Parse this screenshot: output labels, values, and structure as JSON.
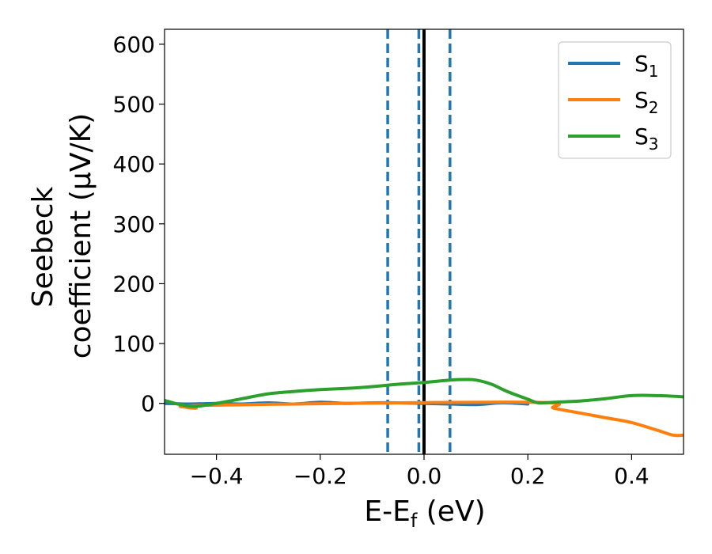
{
  "chart_data": {
    "type": "line",
    "xlabel": {
      "main": "E-E",
      "sub": "f",
      "unit": " (eV)"
    },
    "ylabel": {
      "line1": "Seebeck",
      "line2": "coefficient  (μV/K)"
    },
    "xlim": [
      -0.5,
      0.5
    ],
    "ylim": [
      -85,
      625
    ],
    "xticks": [
      -0.4,
      -0.2,
      0.0,
      0.2,
      0.4
    ],
    "xtick_labels": [
      "−0.4",
      "−0.2",
      "0.0",
      "0.2",
      "0.4"
    ],
    "yticks": [
      0,
      100,
      200,
      300,
      400,
      500,
      600
    ],
    "ytick_labels": [
      "0",
      "100",
      "200",
      "300",
      "400",
      "500",
      "600"
    ],
    "grid": false,
    "legend_position": "top-right",
    "vlines": [
      {
        "x": -0.07,
        "style": "dashed",
        "color": "#1f77b4"
      },
      {
        "x": -0.01,
        "style": "dashed",
        "color": "#1f77b4"
      },
      {
        "x": 0.05,
        "style": "dashed",
        "color": "#1f77b4"
      },
      {
        "x": 0.0,
        "style": "solid",
        "color": "#000000"
      }
    ],
    "series": [
      {
        "name": "S",
        "sub": "1",
        "color": "#1f77b4",
        "x": [
          -0.5,
          -0.45,
          -0.4,
          -0.35,
          -0.3,
          -0.25,
          -0.2,
          -0.15,
          -0.1,
          -0.05,
          0.0,
          0.05,
          0.1,
          0.15,
          0.2
        ],
        "y": [
          0,
          -1,
          0,
          -1,
          1,
          -1,
          2,
          0,
          1,
          1,
          0,
          -1,
          -2,
          1,
          -1
        ]
      },
      {
        "name": "S",
        "sub": "2",
        "color": "#ff7f0e",
        "x": [
          -0.47,
          -0.44,
          -0.41,
          0.2,
          0.25,
          0.3,
          0.35,
          0.4,
          0.45,
          0.48,
          0.5
        ],
        "y": [
          -5,
          -8,
          -3,
          2,
          -8,
          -16,
          -24,
          -32,
          -45,
          -53,
          -53
        ]
      },
      {
        "name": "S",
        "sub": "3",
        "color": "#2ca02c",
        "x": [
          -0.5,
          -0.47,
          -0.44,
          -0.4,
          -0.35,
          -0.3,
          -0.25,
          -0.2,
          -0.15,
          -0.1,
          -0.05,
          0.0,
          0.05,
          0.08,
          0.1,
          0.13,
          0.16,
          0.2,
          0.22,
          0.25,
          0.3,
          0.35,
          0.4,
          0.45,
          0.5
        ],
        "y": [
          5,
          -2,
          -5,
          0,
          8,
          16,
          20,
          23,
          25,
          28,
          32,
          35,
          39,
          40,
          39,
          32,
          20,
          7,
          1,
          2,
          4,
          8,
          13,
          13,
          11
        ]
      }
    ]
  }
}
